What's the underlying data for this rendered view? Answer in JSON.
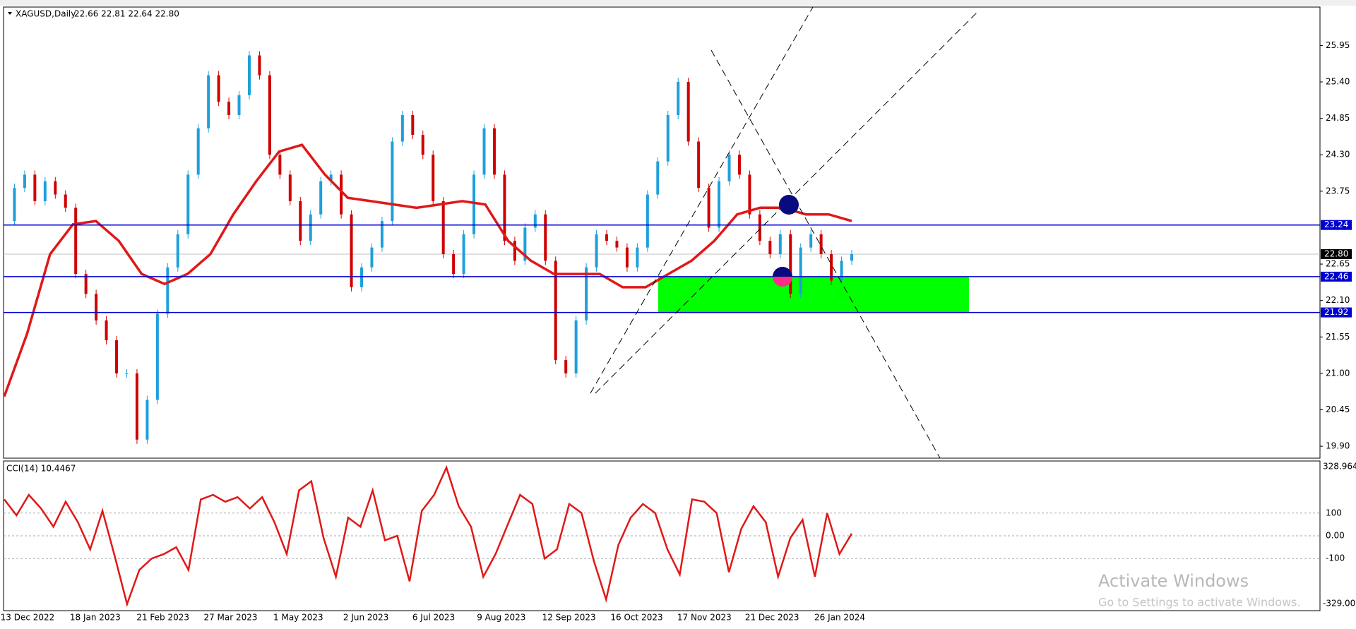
{
  "chart_data": {
    "type": "candlestick",
    "title": "XAGUSD,Daily",
    "quote": "22.66 22.81 22.64 22.80",
    "ylim": [
      19.72,
      26.53
    ],
    "yticks": [
      {
        "value": 19.9,
        "label": "19.90"
      },
      20.45,
      {
        "value": 21.0,
        "label": "21.00"
      },
      21.55,
      {
        "value": 22.1,
        "label": "22.10"
      },
      22.65,
      23.75,
      {
        "value": 24.3,
        "label": "24.30"
      },
      24.85,
      {
        "value": 25.4,
        "label": "25.40"
      },
      25.95
    ],
    "x_labels": [
      "13 Dec 2022",
      "18 Jan 2023",
      "21 Feb 2023",
      "27 Mar 2023",
      "1 May 2023",
      "2 Jun 2023",
      "6 Jul 2023",
      "9 Aug 2023",
      "12 Sep 2023",
      "16 Oct 2023",
      "17 Nov 2023",
      "21 Dec 2023",
      "26 Jan 2024"
    ],
    "series": [
      {
        "name": "XAGUSD",
        "up_color": "#1e9fdc",
        "down_color": "#d00000",
        "values": [
          23.3,
          23.8,
          24.0,
          23.6,
          23.9,
          23.7,
          23.5,
          22.5,
          22.2,
          21.8,
          21.5,
          21.0,
          21.0,
          20.0,
          20.6,
          21.9,
          22.6,
          23.1,
          24.0,
          24.7,
          25.5,
          25.1,
          24.9,
          25.2,
          25.8,
          25.5,
          24.3,
          24.0,
          23.6,
          23.0,
          23.4,
          23.9,
          24.0,
          23.4,
          22.3,
          22.6,
          22.9,
          23.3,
          24.5,
          24.9,
          24.6,
          24.3,
          23.6,
          22.8,
          22.5,
          23.1,
          24.0,
          24.7,
          24.0,
          23.0,
          22.7,
          23.2,
          23.4,
          22.7,
          21.2,
          21.0,
          21.8,
          22.6,
          23.1,
          23.0,
          22.9,
          22.6,
          22.9,
          23.7,
          24.2,
          24.9,
          25.4,
          24.5,
          23.8,
          23.2,
          23.9,
          24.3,
          24.0,
          23.4,
          23.0,
          22.8,
          23.1,
          22.2,
          22.9,
          23.1,
          22.8,
          22.4,
          22.7,
          22.8
        ]
      },
      {
        "name": "MA",
        "color": "#e01818",
        "values": [
          20.65,
          21.6,
          22.8,
          23.25,
          23.3,
          23.0,
          22.5,
          22.35,
          22.5,
          22.8,
          23.4,
          23.9,
          24.35,
          24.45,
          24.0,
          23.65,
          23.6,
          23.55,
          23.5,
          23.55,
          23.6,
          23.55,
          23.0,
          22.7,
          22.5,
          22.5,
          22.5,
          22.3,
          22.3,
          22.5,
          22.7,
          23.0,
          23.4,
          23.5,
          23.5,
          23.4,
          23.4,
          23.3
        ]
      }
    ],
    "levels": [
      23.24,
      22.46,
      21.92
    ],
    "level_color": "#0000d0",
    "zone_color": "#00ff00",
    "current_price": {
      "value": 22.8,
      "label": "22.80"
    },
    "cci": {
      "title": "CCI(14) 10.4467",
      "color": "#e01818",
      "ylim": [
        -329.006,
        328.964
      ],
      "yticks": [
        100,
        {
          "value": 0,
          "label": "0.00"
        },
        -100
      ],
      "values": [
        160,
        90,
        180,
        120,
        40,
        150,
        60,
        -60,
        110,
        -90,
        -300,
        -150,
        -100,
        -80,
        -50,
        -150,
        160,
        180,
        150,
        170,
        120,
        170,
        60,
        -80,
        200,
        240,
        -10,
        -180,
        80,
        40,
        200,
        -20,
        0,
        -200,
        110,
        180,
        300,
        130,
        40,
        -180,
        -80,
        50,
        180,
        140,
        -100,
        -60,
        140,
        100,
        -110,
        -280,
        -40,
        80,
        140,
        100,
        -60,
        -170,
        160,
        150,
        100,
        -160,
        30,
        130,
        60,
        -180,
        -10,
        70,
        -180,
        100,
        -80,
        10
      ]
    },
    "watermark": [
      "Activate Windows",
      "Go to Settings to activate Windows."
    ]
  }
}
